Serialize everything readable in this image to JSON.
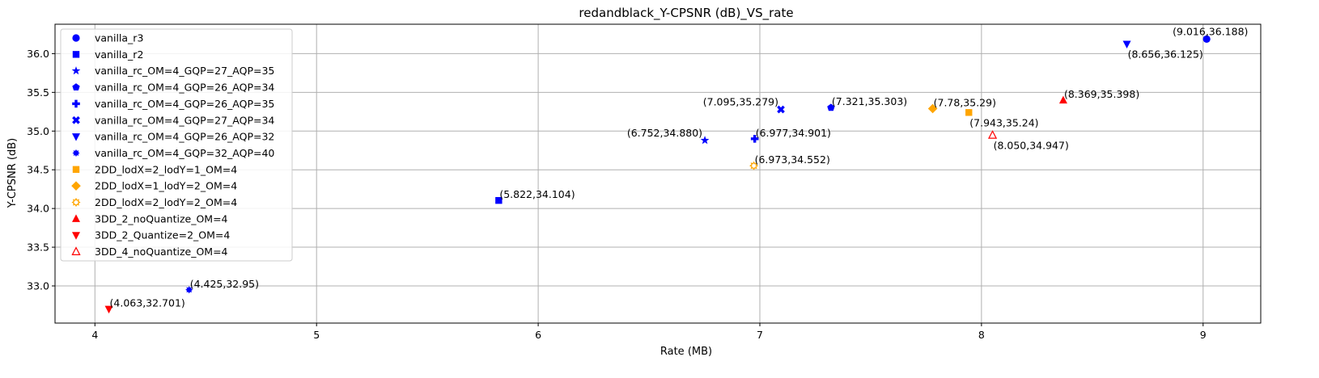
{
  "chart_data": {
    "type": "scatter",
    "title": "redandblack_Y-CPSNR (dB)_VS_rate",
    "xlabel": "Rate (MB)",
    "ylabel": "Y-CPSNR (dB)",
    "xlim": [
      3.82,
      9.26
    ],
    "ylim": [
      32.52,
      36.38
    ],
    "xticks": [
      4,
      5,
      6,
      7,
      8,
      9
    ],
    "yticks": [
      33.0,
      33.5,
      34.0,
      34.5,
      35.0,
      35.5,
      36.0
    ],
    "xtick_labels": [
      "4",
      "5",
      "6",
      "7",
      "8",
      "9"
    ],
    "ytick_labels": [
      "33.0",
      "33.5",
      "34.0",
      "34.5",
      "35.0",
      "35.5",
      "36.0"
    ],
    "grid": true,
    "legend_position": "top-left",
    "series": [
      {
        "name": "vanilla_r3",
        "marker": "circle",
        "color": "#0000ff",
        "filled": true,
        "points": [
          {
            "x": 9.016,
            "y": 36.188,
            "label": "(9.016,36.188)",
            "label_pos": "above-left"
          }
        ]
      },
      {
        "name": "vanilla_r2",
        "marker": "square",
        "color": "#0000ff",
        "filled": true,
        "points": [
          {
            "x": 5.822,
            "y": 34.104,
            "label": "(5.822,34.104)",
            "label_pos": "right"
          }
        ]
      },
      {
        "name": "vanilla_rc_OM=4_GQP=27_AQP=35",
        "marker": "star",
        "color": "#0000ff",
        "filled": true,
        "points": [
          {
            "x": 6.752,
            "y": 34.88,
            "label": "(6.752,34.880)",
            "label_pos": "left"
          }
        ]
      },
      {
        "name": "vanilla_rc_OM=4_GQP=26_AQP=34",
        "marker": "pentagon",
        "color": "#0000ff",
        "filled": true,
        "points": [
          {
            "x": 7.321,
            "y": 35.303,
            "label": "(7.321,35.303)",
            "label_pos": "right"
          }
        ]
      },
      {
        "name": "vanilla_rc_OM=4_GQP=26_AQP=35",
        "marker": "plus",
        "color": "#0000ff",
        "filled": true,
        "points": [
          {
            "x": 6.977,
            "y": 34.901,
            "label": "(6.977,34.901)",
            "label_pos": "right"
          }
        ]
      },
      {
        "name": "vanilla_rc_OM=4_GQP=27_AQP=34",
        "marker": "xfilled",
        "color": "#0000ff",
        "filled": true,
        "points": [
          {
            "x": 7.095,
            "y": 35.279,
            "label": "(7.095,35.279)",
            "label_pos": "left"
          }
        ]
      },
      {
        "name": "vanilla_rc_OM=4_GQP=26_AQP=32",
        "marker": "triangle-down",
        "color": "#0000ff",
        "filled": true,
        "points": [
          {
            "x": 8.656,
            "y": 36.125,
            "label": "(8.656,36.125)",
            "label_pos": "below-right"
          }
        ]
      },
      {
        "name": "vanilla_rc_OM=4_GQP=32_AQP=40",
        "marker": "octagram",
        "color": "#0000ff",
        "filled": true,
        "points": [
          {
            "x": 4.425,
            "y": 32.95,
            "label": "(4.425,32.95)",
            "label_pos": "right"
          }
        ]
      },
      {
        "name": "2DD_lodX=2_lodY=1_OM=4",
        "marker": "square",
        "color": "#ffa500",
        "filled": true,
        "points": [
          {
            "x": 7.943,
            "y": 35.24,
            "label": "(7.943,35.24)",
            "label_pos": "below-right"
          }
        ]
      },
      {
        "name": "2DD_lodX=1_lodY=2_OM=4",
        "marker": "diamond",
        "color": "#ffa500",
        "filled": true,
        "points": [
          {
            "x": 7.78,
            "y": 35.29,
            "label": "(7.78,35.29)",
            "label_pos": "right"
          }
        ]
      },
      {
        "name": "2DD_lodX=2_lodY=2_OM=4",
        "marker": "octagram-open",
        "color": "#ffa500",
        "filled": false,
        "points": [
          {
            "x": 6.973,
            "y": 34.552,
            "label": "(6.973,34.552)",
            "label_pos": "right"
          }
        ]
      },
      {
        "name": "3DD_2_noQuantize_OM=4",
        "marker": "triangle-up",
        "color": "#ff0000",
        "filled": true,
        "points": [
          {
            "x": 8.369,
            "y": 35.398,
            "label": "(8.369,35.398)",
            "label_pos": "right"
          }
        ]
      },
      {
        "name": "3DD_2_Quantize=2_OM=4",
        "marker": "triangle-down",
        "color": "#ff0000",
        "filled": true,
        "points": [
          {
            "x": 4.063,
            "y": 32.701,
            "label": "(4.063,32.701)",
            "label_pos": "right"
          }
        ]
      },
      {
        "name": "3DD_4_noQuantize_OM=4",
        "marker": "triangle-up-open",
        "color": "#ff0000",
        "filled": false,
        "points": [
          {
            "x": 8.05,
            "y": 34.947,
            "label": "(8.050,34.947)",
            "label_pos": "below-right"
          }
        ]
      }
    ]
  }
}
